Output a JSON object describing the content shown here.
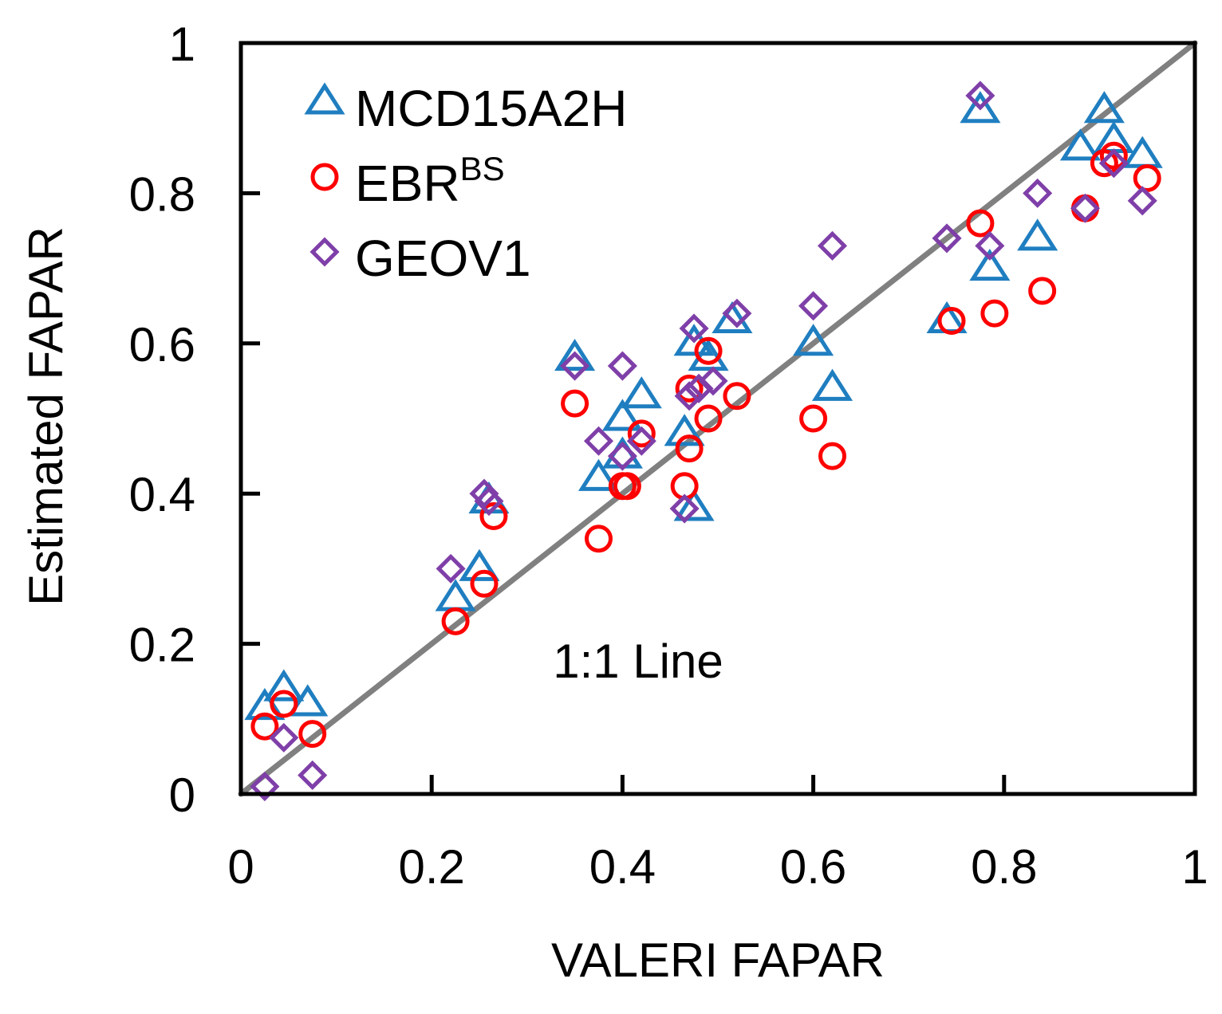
{
  "chart_data": {
    "type": "scatter",
    "xlabel": "VALERI FAPAR",
    "ylabel": "Estimated FAPAR",
    "xlim": [
      0,
      1
    ],
    "ylim": [
      0,
      1
    ],
    "xticks": [
      "0",
      "0.2",
      "0.4",
      "0.6",
      "0.8",
      "1"
    ],
    "yticks": [
      "0",
      "0.2",
      "0.4",
      "0.6",
      "0.8",
      "1"
    ],
    "legend_position": "top-left",
    "annotation": "1:1 Line",
    "reference_line": {
      "label": "1:1 Line",
      "from": [
        0,
        0
      ],
      "to": [
        1,
        1
      ],
      "color": "#808080"
    },
    "series": [
      {
        "name": "MCD15A2H",
        "legend_main": "MCD15A2H",
        "legend_sup": "",
        "marker": "triangle",
        "color": "#1f7ec0",
        "points": [
          [
            0.025,
            0.115
          ],
          [
            0.045,
            0.14
          ],
          [
            0.07,
            0.12
          ],
          [
            0.225,
            0.26
          ],
          [
            0.25,
            0.3
          ],
          [
            0.26,
            0.39
          ],
          [
            0.35,
            0.58
          ],
          [
            0.375,
            0.42
          ],
          [
            0.4,
            0.45
          ],
          [
            0.4,
            0.5
          ],
          [
            0.42,
            0.53
          ],
          [
            0.465,
            0.48
          ],
          [
            0.475,
            0.38
          ],
          [
            0.475,
            0.6
          ],
          [
            0.49,
            0.58
          ],
          [
            0.515,
            0.63
          ],
          [
            0.6,
            0.6
          ],
          [
            0.62,
            0.54
          ],
          [
            0.74,
            0.63
          ],
          [
            0.775,
            0.91
          ],
          [
            0.785,
            0.7
          ],
          [
            0.835,
            0.74
          ],
          [
            0.88,
            0.86
          ],
          [
            0.905,
            0.91
          ],
          [
            0.915,
            0.87
          ],
          [
            0.945,
            0.85
          ]
        ]
      },
      {
        "name": "EBR^BS",
        "legend_main": "EBR",
        "legend_sup": "BS",
        "marker": "circle",
        "color": "#ff0000",
        "points": [
          [
            0.025,
            0.09
          ],
          [
            0.045,
            0.12
          ],
          [
            0.075,
            0.08
          ],
          [
            0.225,
            0.23
          ],
          [
            0.255,
            0.28
          ],
          [
            0.265,
            0.37
          ],
          [
            0.35,
            0.52
          ],
          [
            0.375,
            0.34
          ],
          [
            0.4,
            0.41
          ],
          [
            0.405,
            0.41
          ],
          [
            0.42,
            0.48
          ],
          [
            0.465,
            0.41
          ],
          [
            0.47,
            0.46
          ],
          [
            0.47,
            0.54
          ],
          [
            0.49,
            0.5
          ],
          [
            0.49,
            0.59
          ],
          [
            0.52,
            0.53
          ],
          [
            0.6,
            0.5
          ],
          [
            0.62,
            0.45
          ],
          [
            0.745,
            0.63
          ],
          [
            0.775,
            0.76
          ],
          [
            0.79,
            0.64
          ],
          [
            0.84,
            0.67
          ],
          [
            0.885,
            0.78
          ],
          [
            0.905,
            0.84
          ],
          [
            0.915,
            0.85
          ],
          [
            0.95,
            0.82
          ]
        ]
      },
      {
        "name": "GEOV1",
        "legend_main": "GEOV1",
        "legend_sup": "",
        "marker": "diamond",
        "color": "#7f3fa8",
        "points": [
          [
            0.025,
            0.01
          ],
          [
            0.045,
            0.075
          ],
          [
            0.075,
            0.025
          ],
          [
            0.22,
            0.3
          ],
          [
            0.255,
            0.4
          ],
          [
            0.26,
            0.39
          ],
          [
            0.35,
            0.57
          ],
          [
            0.375,
            0.47
          ],
          [
            0.4,
            0.45
          ],
          [
            0.4,
            0.57
          ],
          [
            0.42,
            0.47
          ],
          [
            0.465,
            0.38
          ],
          [
            0.47,
            0.53
          ],
          [
            0.475,
            0.62
          ],
          [
            0.48,
            0.54
          ],
          [
            0.495,
            0.55
          ],
          [
            0.52,
            0.64
          ],
          [
            0.6,
            0.65
          ],
          [
            0.62,
            0.73
          ],
          [
            0.74,
            0.74
          ],
          [
            0.775,
            0.93
          ],
          [
            0.785,
            0.73
          ],
          [
            0.835,
            0.8
          ],
          [
            0.885,
            0.78
          ],
          [
            0.915,
            0.84
          ],
          [
            0.945,
            0.79
          ]
        ]
      }
    ]
  }
}
